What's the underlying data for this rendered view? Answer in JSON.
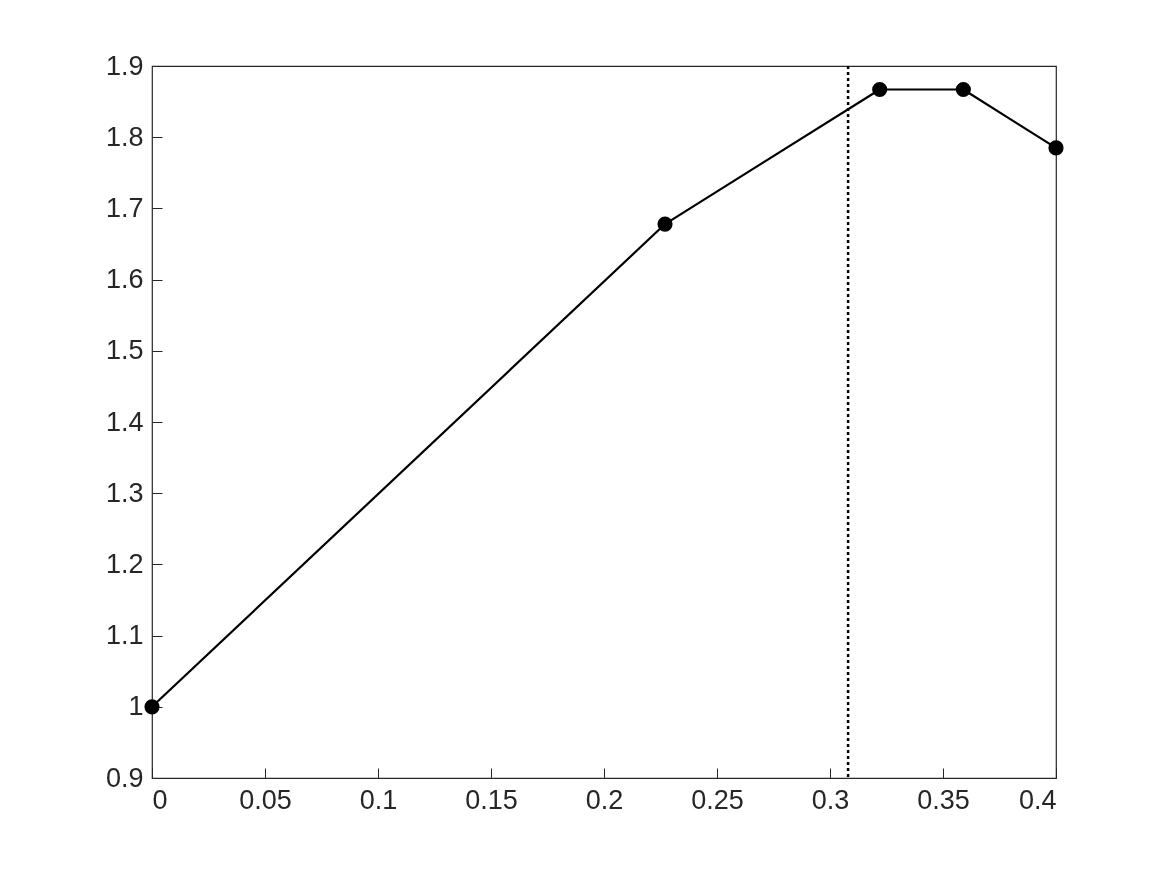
{
  "chart_data": {
    "type": "line",
    "x": [
      0,
      0.227,
      0.322,
      0.359,
      0.4
    ],
    "series": [
      {
        "color": "#000000",
        "values": [
          1,
          1.678,
          1.867,
          1.867,
          1.785
        ]
      }
    ],
    "xlim": [
      0,
      0.4
    ],
    "ylim": [
      0.9,
      1.9
    ],
    "xticks": [
      0,
      0.05,
      0.1,
      0.15,
      0.2,
      0.25,
      0.3,
      0.35,
      0.4
    ],
    "yticks": [
      0.9,
      1,
      1.1,
      1.2,
      1.3,
      1.4,
      1.5,
      1.6,
      1.7,
      1.8,
      1.9
    ],
    "marker": "circle",
    "line_style": "solid",
    "grid": false,
    "ref_lines": [
      {
        "axis": "x",
        "value": 0.308,
        "color": "#000000",
        "line_style": "dotted"
      }
    ]
  }
}
